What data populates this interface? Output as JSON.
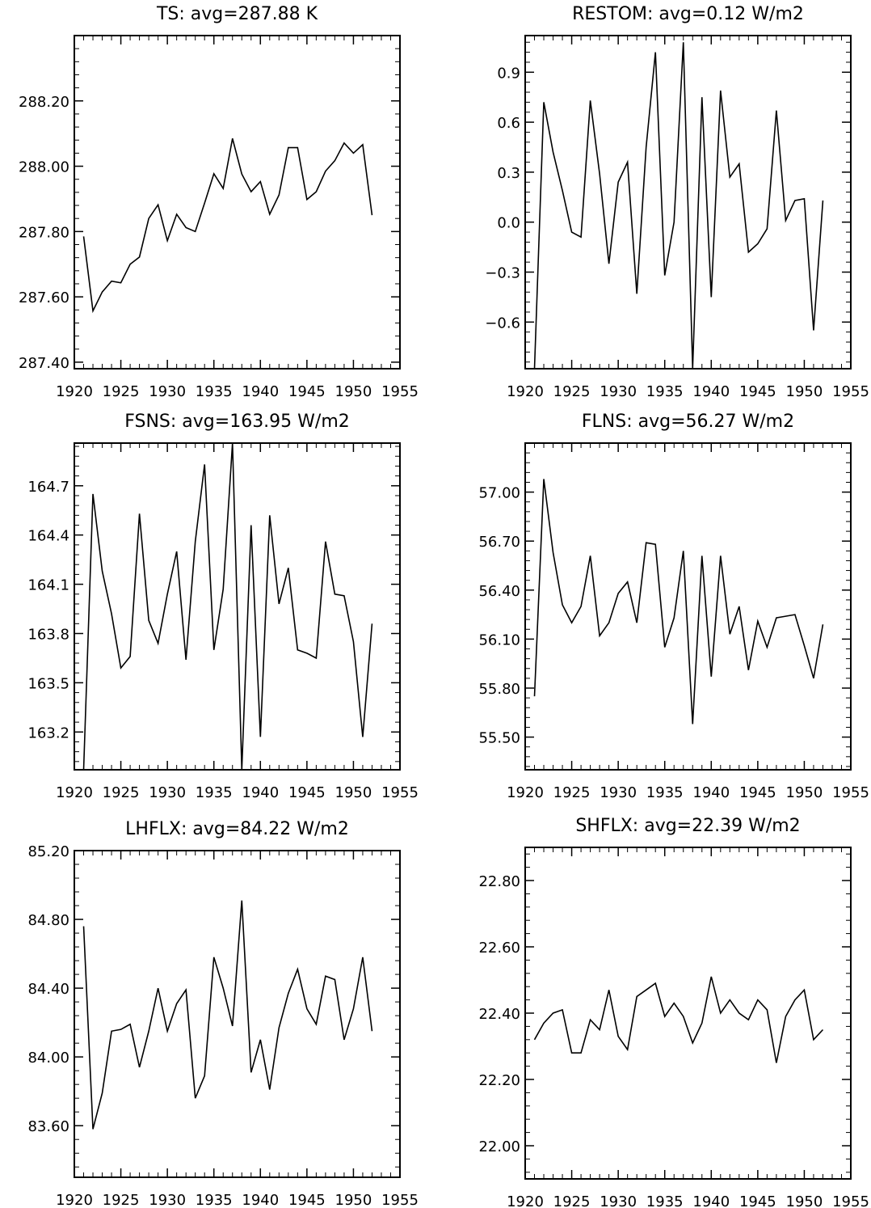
{
  "figure": {
    "background": "#ffffff",
    "line_color": "#000000"
  },
  "chart_data": [
    {
      "type": "line",
      "title": "TS: avg=287.88 K",
      "xlim": [
        1920,
        1955
      ],
      "ylim": [
        287.38,
        288.4
      ],
      "xticks": [
        "1920",
        "1925",
        "1930",
        "1935",
        "1940",
        "1945",
        "1950",
        "1955"
      ],
      "yticks": [
        "287.40",
        "287.60",
        "287.80",
        "288.00",
        "288.20"
      ],
      "series": [
        {
          "x": [
            1921,
            1922,
            1923,
            1924,
            1925,
            1926,
            1927,
            1928,
            1929,
            1930,
            1931,
            1932,
            1933,
            1934,
            1935,
            1936,
            1937,
            1938,
            1939,
            1940,
            1941,
            1942,
            1943,
            1944,
            1945,
            1946,
            1947,
            1948,
            1949,
            1950,
            1951,
            1952
          ],
          "values": [
            287.785,
            287.557,
            287.615,
            287.648,
            287.643,
            287.7,
            287.722,
            287.84,
            287.882,
            287.772,
            287.853,
            287.812,
            287.8,
            287.887,
            287.977,
            287.932,
            288.085,
            287.976,
            287.922,
            287.953,
            287.853,
            287.912,
            288.057,
            288.057,
            287.898,
            287.922,
            287.985,
            288.017,
            288.071,
            288.04,
            288.066,
            287.85
          ]
        }
      ]
    },
    {
      "type": "line",
      "title": "RESTOM: avg=0.12 W/m2",
      "xlim": [
        1920,
        1955
      ],
      "ylim": [
        -0.88,
        1.12
      ],
      "xticks": [
        "1920",
        "1925",
        "1930",
        "1935",
        "1940",
        "1945",
        "1950",
        "1955"
      ],
      "yticks": [
        "−0.6",
        "−0.3",
        "0.0",
        "0.3",
        "0.6",
        "0.9"
      ],
      "series": [
        {
          "x": [
            1921,
            1922,
            1923,
            1924,
            1925,
            1926,
            1927,
            1928,
            1929,
            1930,
            1931,
            1932,
            1933,
            1934,
            1935,
            1936,
            1937,
            1938,
            1939,
            1940,
            1941,
            1942,
            1943,
            1944,
            1945,
            1946,
            1947,
            1948,
            1949,
            1950,
            1951,
            1952
          ],
          "values": [
            -0.88,
            0.72,
            0.42,
            0.19,
            -0.06,
            -0.09,
            0.73,
            0.29,
            -0.25,
            0.24,
            0.36,
            -0.43,
            0.45,
            1.02,
            -0.32,
            0.0,
            1.08,
            -0.88,
            0.75,
            -0.45,
            0.79,
            0.27,
            0.35,
            -0.18,
            -0.13,
            -0.04,
            0.67,
            0.01,
            0.13,
            0.14,
            -0.65,
            0.13
          ]
        }
      ]
    },
    {
      "type": "line",
      "title": "FSNS: avg=163.95 W/m2",
      "xlim": [
        1920,
        1955
      ],
      "ylim": [
        162.97,
        164.96
      ],
      "xticks": [
        "1920",
        "1925",
        "1930",
        "1935",
        "1940",
        "1945",
        "1950",
        "1955"
      ],
      "yticks": [
        "163.2",
        "163.5",
        "163.8",
        "164.1",
        "164.4",
        "164.7"
      ],
      "series": [
        {
          "x": [
            1921,
            1922,
            1923,
            1924,
            1925,
            1926,
            1927,
            1928,
            1929,
            1930,
            1931,
            1932,
            1933,
            1934,
            1935,
            1936,
            1937,
            1938,
            1939,
            1940,
            1941,
            1942,
            1943,
            1944,
            1945,
            1946,
            1947,
            1948,
            1949,
            1950,
            1951,
            1952
          ],
          "values": [
            162.97,
            164.65,
            164.18,
            163.92,
            163.59,
            163.66,
            164.53,
            163.88,
            163.74,
            164.04,
            164.3,
            163.64,
            164.36,
            164.83,
            163.7,
            164.07,
            164.96,
            162.97,
            164.46,
            163.17,
            164.52,
            163.98,
            164.2,
            163.7,
            163.68,
            163.65,
            164.36,
            164.04,
            164.03,
            163.75,
            163.17,
            163.86
          ]
        }
      ]
    },
    {
      "type": "line",
      "title": "FLNS: avg=56.27 W/m2",
      "xlim": [
        1920,
        1955
      ],
      "ylim": [
        55.3,
        57.3
      ],
      "xticks": [
        "1920",
        "1925",
        "1930",
        "1935",
        "1940",
        "1945",
        "1950",
        "1955"
      ],
      "yticks": [
        "55.50",
        "55.80",
        "56.10",
        "56.40",
        "56.70",
        "57.00"
      ],
      "series": [
        {
          "x": [
            1921,
            1922,
            1923,
            1924,
            1925,
            1926,
            1927,
            1928,
            1929,
            1930,
            1931,
            1932,
            1933,
            1934,
            1935,
            1936,
            1937,
            1938,
            1939,
            1940,
            1941,
            1942,
            1943,
            1944,
            1945,
            1946,
            1947,
            1948,
            1949,
            1950,
            1951,
            1952
          ],
          "values": [
            55.75,
            57.08,
            56.63,
            56.31,
            56.2,
            56.3,
            56.61,
            56.12,
            56.2,
            56.38,
            56.45,
            56.2,
            56.69,
            56.68,
            56.05,
            56.23,
            56.64,
            55.58,
            56.61,
            55.87,
            56.61,
            56.13,
            56.3,
            55.91,
            56.21,
            56.05,
            56.23,
            56.24,
            56.25,
            56.06,
            55.86,
            56.19
          ]
        }
      ]
    },
    {
      "type": "line",
      "title": "LHFLX: avg=84.22 W/m2",
      "xlim": [
        1920,
        1955
      ],
      "ylim": [
        83.3,
        85.2
      ],
      "xticks": [
        "1920",
        "1925",
        "1930",
        "1935",
        "1940",
        "1945",
        "1950",
        "1955"
      ],
      "yticks": [
        "83.60",
        "84.00",
        "84.40",
        "84.80",
        "85.20"
      ],
      "series": [
        {
          "x": [
            1921,
            1922,
            1923,
            1924,
            1925,
            1926,
            1927,
            1928,
            1929,
            1930,
            1931,
            1932,
            1933,
            1934,
            1935,
            1936,
            1937,
            1938,
            1939,
            1940,
            1941,
            1942,
            1943,
            1944,
            1945,
            1946,
            1947,
            1948,
            1949,
            1950,
            1951,
            1952
          ],
          "values": [
            84.76,
            83.58,
            83.79,
            84.15,
            84.16,
            84.19,
            83.94,
            84.15,
            84.4,
            84.15,
            84.31,
            84.39,
            83.76,
            83.89,
            84.58,
            84.4,
            84.18,
            84.91,
            83.91,
            84.1,
            83.81,
            84.17,
            84.37,
            84.51,
            84.28,
            84.19,
            84.47,
            84.45,
            84.1,
            84.28,
            84.58,
            84.15
          ]
        }
      ]
    },
    {
      "type": "line",
      "title": "SHFLX: avg=22.39 W/m2",
      "xlim": [
        1920,
        1955
      ],
      "ylim": [
        21.9,
        22.9
      ],
      "xticks": [
        "1920",
        "1925",
        "1930",
        "1935",
        "1940",
        "1945",
        "1950",
        "1955"
      ],
      "yticks": [
        "22.00",
        "22.20",
        "22.40",
        "22.60",
        "22.80"
      ],
      "series": [
        {
          "x": [
            1921,
            1922,
            1923,
            1924,
            1925,
            1926,
            1927,
            1928,
            1929,
            1930,
            1931,
            1932,
            1933,
            1934,
            1935,
            1936,
            1937,
            1938,
            1939,
            1940,
            1941,
            1942,
            1943,
            1944,
            1945,
            1946,
            1947,
            1948,
            1949,
            1950,
            1951,
            1952
          ],
          "values": [
            22.32,
            22.37,
            22.4,
            22.41,
            22.28,
            22.28,
            22.38,
            22.35,
            22.47,
            22.33,
            22.29,
            22.45,
            22.47,
            22.49,
            22.39,
            22.43,
            22.39,
            22.31,
            22.37,
            22.51,
            22.4,
            22.44,
            22.4,
            22.38,
            22.44,
            22.41,
            22.25,
            22.39,
            22.44,
            22.47,
            22.32,
            22.35
          ]
        }
      ]
    }
  ]
}
